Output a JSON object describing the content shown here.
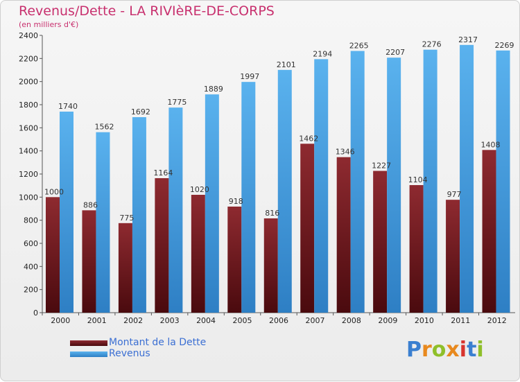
{
  "title": "Revenus/Dette - LA RIVIèRE-DE-CORPS",
  "subtitle": "(en milliers d'€)",
  "legend": {
    "debt_label": "Montant de la Dette",
    "revenue_label": "Revenus"
  },
  "logo": {
    "text": "Proxiti"
  },
  "colors": {
    "debt": "#7a1f24",
    "revenue": "#4aa6e6",
    "title": "#c8306e",
    "legend_text": "#3b6fd3"
  },
  "chart_data": {
    "type": "bar",
    "categories": [
      "2000",
      "2001",
      "2002",
      "2003",
      "2004",
      "2005",
      "2006",
      "2007",
      "2008",
      "2009",
      "2010",
      "2011",
      "2012"
    ],
    "series": [
      {
        "name": "Montant de la Dette",
        "values": [
          1000,
          886,
          775,
          1164,
          1020,
          918,
          816,
          1462,
          1346,
          1227,
          1104,
          977,
          1408
        ]
      },
      {
        "name": "Revenus",
        "values": [
          1740,
          1562,
          1692,
          1775,
          1889,
          1997,
          2101,
          2194,
          2265,
          2207,
          2276,
          2317,
          2269
        ]
      }
    ],
    "y_ticks": [
      0,
      200,
      400,
      600,
      800,
      1000,
      1200,
      1400,
      1600,
      1800,
      2000,
      2200,
      2400
    ],
    "ylim": [
      0,
      2400
    ],
    "grid": false,
    "legend_position": "bottom-left"
  }
}
